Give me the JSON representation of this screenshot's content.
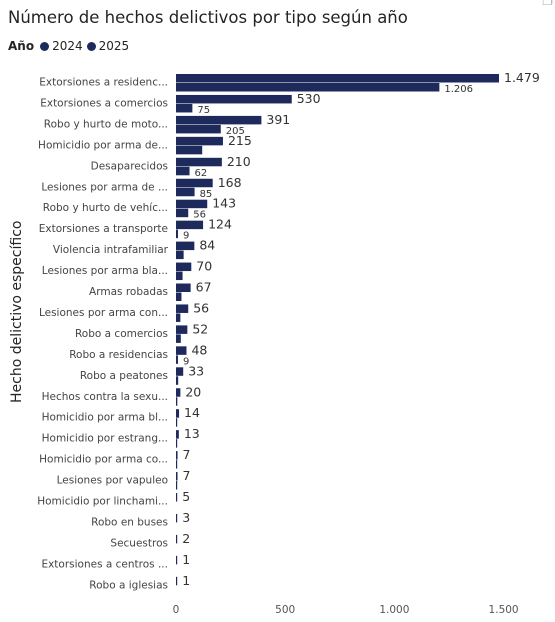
{
  "chart_data": {
    "type": "bar",
    "orientation": "horizontal",
    "title": "Número de hechos delictivos por tipo según año",
    "legend_title": "Año",
    "legend_position": "top-left",
    "ylabel": "Hecho delictivo específico",
    "xlabel": "",
    "xlim": [
      0,
      1700
    ],
    "xticks": [
      "0",
      "500",
      "1.000",
      "1.500"
    ],
    "xtick_values": [
      0,
      500,
      1000,
      1500
    ],
    "grid": false,
    "categories": [
      "Extorsiones a residenc...",
      "Extorsiones a comercios",
      "Robo y hurto de moto...",
      "Homicidio por arma de...",
      "Desaparecidos",
      "Lesiones por arma de ...",
      "Robo y hurto de vehíc...",
      "Extorsiones a transporte",
      "Violencia intrafamiliar",
      "Lesiones por arma bla...",
      "Armas robadas",
      "Lesiones por arma con...",
      "Robo a comercios",
      "Robo a residencias",
      "Robo a peatones",
      "Hechos contra la sexu...",
      "Homicidio por arma bl...",
      "Homicidio por estrang...",
      "Homicidio por arma co...",
      "Lesiones por vapuleo",
      "Homicidio por linchami...",
      "Robo en buses",
      "Secuestros",
      "Extorsiones a centros ...",
      "Robo a iglesias"
    ],
    "series": [
      {
        "name": "2024",
        "color": "#1f2a5c",
        "values": [
          1479,
          530,
          391,
          215,
          210,
          168,
          143,
          124,
          84,
          70,
          67,
          56,
          52,
          48,
          33,
          20,
          14,
          13,
          7,
          7,
          5,
          3,
          2,
          1,
          1
        ],
        "labels": [
          "1.479",
          "530",
          "391",
          "215",
          "210",
          "168",
          "143",
          "124",
          "84",
          "70",
          "67",
          "56",
          "52",
          "48",
          "33",
          "20",
          "14",
          "13",
          "7",
          "7",
          "5",
          "3",
          "2",
          "1",
          "1"
        ]
      },
      {
        "name": "2025",
        "color": "#1f2a5c",
        "values": [
          1206,
          75,
          205,
          120,
          62,
          85,
          56,
          9,
          35,
          30,
          25,
          20,
          22,
          9,
          10,
          6,
          5,
          5,
          2,
          2,
          0,
          0,
          0,
          0,
          0
        ],
        "labels": [
          "1.206",
          "75",
          "205",
          "",
          "62",
          "85",
          "56",
          "9",
          "",
          "",
          "",
          "",
          "",
          "9",
          "",
          "",
          "",
          "",
          "",
          "",
          "",
          "",
          "",
          "",
          ""
        ]
      }
    ]
  }
}
